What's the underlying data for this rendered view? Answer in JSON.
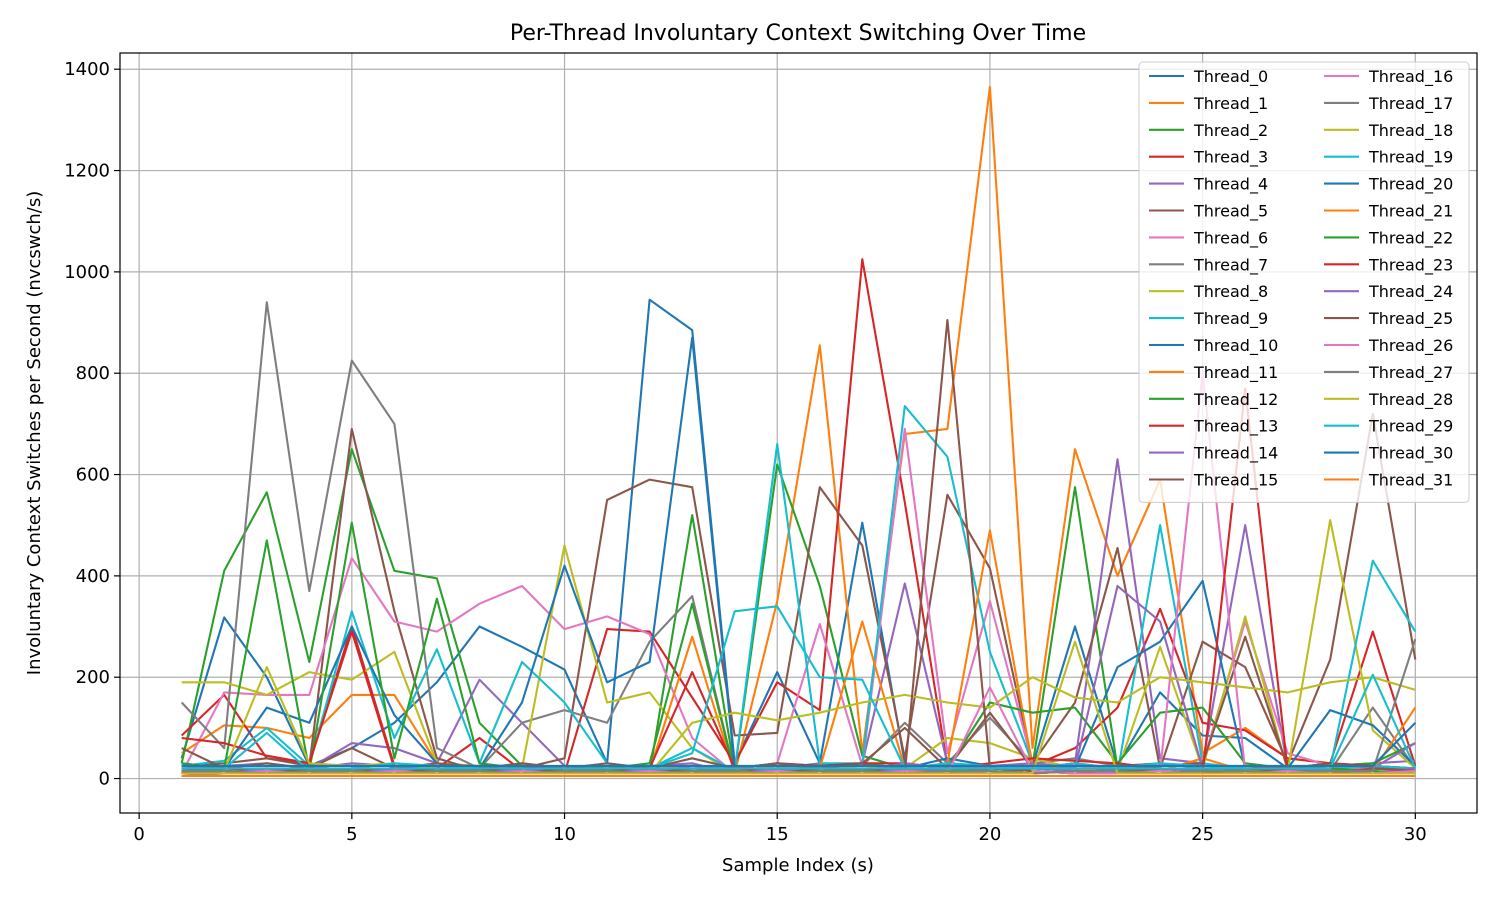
{
  "chart_data": {
    "type": "line",
    "title": "Per-Thread Involuntary Context Switching Over Time",
    "xlabel": "Sample Index (s)",
    "ylabel": "Involuntary Context Switches per Second (nvcswch/s)",
    "xlim": [
      -0.45,
      31.45
    ],
    "ylim": [
      -68,
      1432
    ],
    "x_ticks": [
      0,
      5,
      10,
      15,
      20,
      25,
      30
    ],
    "y_ticks": [
      0,
      200,
      400,
      600,
      800,
      1000,
      1200,
      1400
    ],
    "grid": true,
    "legend": {
      "placement": "top-right",
      "columns": 2
    },
    "x": [
      1,
      2,
      3,
      4,
      5,
      6,
      7,
      8,
      9,
      10,
      11,
      12,
      13,
      14,
      15,
      16,
      17,
      18,
      19,
      20,
      21,
      22,
      23,
      24,
      25,
      26,
      27,
      28,
      29,
      30
    ],
    "series": [
      {
        "name": "Thread_0",
        "color": "#1f77b4",
        "values": [
          40,
          318,
          200,
          25,
          60,
          110,
          190,
          300,
          260,
          215,
          30,
          945,
          885,
          30,
          210,
          30,
          505,
          30,
          20,
          25,
          25,
          300,
          25,
          170,
          85,
          80,
          20,
          30,
          25,
          20
        ]
      },
      {
        "name": "Thread_1",
        "color": "#ff7f0e",
        "values": [
          50,
          105,
          100,
          80,
          165,
          165,
          30,
          25,
          20,
          15,
          15,
          20,
          25,
          10,
          350,
          855,
          50,
          680,
          690,
          1365,
          60,
          650,
          400,
          590,
          50,
          100,
          40,
          30,
          20,
          15
        ]
      },
      {
        "name": "Thread_2",
        "color": "#2ca02c",
        "values": [
          30,
          410,
          565,
          230,
          650,
          410,
          395,
          110,
          25,
          20,
          15,
          10,
          520,
          15,
          620,
          380,
          45,
          20,
          15,
          20,
          25,
          575,
          20,
          15,
          10,
          15,
          10,
          15,
          10,
          10
        ]
      },
      {
        "name": "Thread_3",
        "color": "#d62728",
        "values": [
          85,
          165,
          40,
          30,
          300,
          25,
          20,
          80,
          15,
          10,
          295,
          290,
          160,
          30,
          190,
          135,
          1025,
          545,
          25,
          20,
          25,
          60,
          140,
          335,
          110,
          95,
          40,
          30,
          290,
          25
        ]
      },
      {
        "name": "Thread_4",
        "color": "#9467bd",
        "values": [
          20,
          25,
          30,
          20,
          70,
          60,
          30,
          195,
          110,
          25,
          20,
          25,
          30,
          10,
          20,
          25,
          30,
          385,
          30,
          25,
          20,
          30,
          630,
          40,
          30,
          500,
          20,
          25,
          30,
          35
        ]
      },
      {
        "name": "Thread_5",
        "color": "#8c564b",
        "values": [
          25,
          30,
          40,
          25,
          690,
          330,
          40,
          15,
          20,
          40,
          550,
          590,
          575,
          85,
          90,
          575,
          460,
          40,
          560,
          415,
          30,
          150,
          455,
          20,
          270,
          220,
          30,
          235,
          720,
          235
        ]
      },
      {
        "name": "Thread_6",
        "color": "#e377c2",
        "values": [
          10,
          170,
          165,
          165,
          435,
          310,
          290,
          345,
          380,
          295,
          320,
          285,
          80,
          10,
          30,
          305,
          25,
          690,
          50,
          350,
          30,
          25,
          20,
          25,
          30,
          310,
          50,
          25,
          20,
          15
        ]
      },
      {
        "name": "Thread_7",
        "color": "#7f7f7f",
        "values": [
          150,
          60,
          940,
          370,
          825,
          700,
          60,
          20,
          110,
          135,
          110,
          270,
          360,
          10,
          20,
          30,
          25,
          110,
          30,
          120,
          30,
          40,
          25,
          30,
          20,
          20,
          10,
          15,
          140,
          20
        ]
      },
      {
        "name": "Thread_8",
        "color": "#bcbd22",
        "values": [
          190,
          190,
          165,
          210,
          195,
          250,
          30,
          20,
          20,
          460,
          150,
          170,
          60,
          10,
          30,
          20,
          25,
          20,
          80,
          70,
          40,
          20,
          15,
          260,
          20,
          320,
          15,
          510,
          95,
          20
        ]
      },
      {
        "name": "Thread_9",
        "color": "#17becf",
        "values": [
          25,
          35,
          100,
          25,
          330,
          80,
          255,
          30,
          230,
          150,
          30,
          20,
          60,
          15,
          660,
          30,
          30,
          735,
          635,
          250,
          30,
          20,
          10,
          500,
          30,
          20,
          15,
          20,
          430,
          290
        ]
      },
      {
        "name": "Thread_10",
        "color": "#1f77b4",
        "values": [
          30,
          20,
          140,
          110,
          300,
          125,
          30,
          20,
          150,
          420,
          190,
          230,
          870,
          20,
          30,
          25,
          30,
          20,
          40,
          25,
          20,
          20,
          220,
          270,
          390,
          20,
          20,
          135,
          105,
          25
        ]
      },
      {
        "name": "Thread_11",
        "color": "#ff7f0e",
        "values": [
          20,
          15,
          10,
          10,
          15,
          20,
          10,
          15,
          10,
          20,
          10,
          15,
          280,
          10,
          30,
          20,
          310,
          20,
          30,
          490,
          25,
          20,
          10,
          15,
          40,
          15,
          10,
          20,
          15,
          140
        ]
      },
      {
        "name": "Thread_12",
        "color": "#2ca02c",
        "values": [
          30,
          20,
          470,
          15,
          505,
          40,
          355,
          30,
          20,
          25,
          20,
          30,
          345,
          10,
          20,
          25,
          30,
          20,
          20,
          150,
          130,
          140,
          30,
          130,
          140,
          30,
          20,
          25,
          30,
          70
        ]
      },
      {
        "name": "Thread_13",
        "color": "#d62728",
        "values": [
          80,
          70,
          45,
          30,
          290,
          20,
          15,
          15,
          20,
          25,
          15,
          20,
          210,
          20,
          30,
          25,
          30,
          30,
          20,
          30,
          40,
          35,
          30,
          20,
          15,
          25,
          20,
          30,
          25,
          20
        ]
      },
      {
        "name": "Thread_14",
        "color": "#9467bd",
        "values": [
          20,
          15,
          10,
          20,
          30,
          25,
          20,
          15,
          30,
          20,
          15,
          10,
          25,
          20,
          30,
          20,
          15,
          30,
          20,
          25,
          30,
          20,
          380,
          310,
          20,
          15,
          20,
          15,
          20,
          70
        ]
      },
      {
        "name": "Thread_15",
        "color": "#8c564b",
        "values": [
          60,
          20,
          30,
          20,
          60,
          20,
          30,
          20,
          30,
          20,
          30,
          20,
          40,
          20,
          30,
          20,
          30,
          100,
          20,
          130,
          20,
          30,
          20,
          25,
          30,
          280,
          20,
          30,
          20,
          20
        ]
      },
      {
        "name": "Thread_16",
        "color": "#e377c2",
        "values": [
          10,
          15,
          10,
          15,
          10,
          15,
          20,
          10,
          15,
          10,
          15,
          10,
          15,
          10,
          20,
          15,
          10,
          15,
          20,
          15,
          10,
          15,
          20,
          15,
          800,
          15,
          10,
          15,
          20,
          15
        ]
      },
      {
        "name": "Thread_17",
        "color": "#7f7f7f",
        "values": [
          5,
          10,
          15,
          10,
          20,
          15,
          10,
          20,
          15,
          10,
          15,
          20,
          10,
          15,
          20,
          10,
          15,
          20,
          15,
          10,
          20,
          15,
          10,
          20,
          15,
          10,
          15,
          20,
          10,
          15
        ]
      },
      {
        "name": "Thread_18",
        "color": "#bcbd22",
        "values": [
          20,
          15,
          220,
          30,
          25,
          30,
          20,
          15,
          10,
          20,
          15,
          10,
          110,
          130,
          115,
          130,
          150,
          165,
          150,
          140,
          200,
          160,
          150,
          200,
          190,
          180,
          170,
          190,
          200,
          175
        ]
      },
      {
        "name": "Thread_19",
        "color": "#17becf",
        "values": [
          15,
          20,
          90,
          15,
          20,
          30,
          25,
          20,
          15,
          20,
          15,
          20,
          50,
          330,
          340,
          200,
          195,
          20,
          30,
          25,
          20,
          30,
          20,
          30,
          25,
          20,
          15,
          20,
          25,
          20
        ]
      },
      {
        "name": "Thread_20",
        "color": "#1f77b4",
        "values": [
          20,
          15,
          10,
          15,
          20,
          15,
          10,
          15,
          20,
          15,
          10,
          15,
          20,
          15,
          20,
          15,
          10,
          15,
          20,
          15,
          10,
          15,
          20,
          15,
          10,
          15,
          20,
          15,
          10,
          15
        ]
      },
      {
        "name": "Thread_21",
        "color": "#ff7f0e",
        "values": [
          10,
          15,
          20,
          15,
          10,
          15,
          20,
          15,
          10,
          15,
          20,
          15,
          10,
          15,
          25,
          15,
          10,
          15,
          20,
          15,
          10,
          15,
          20,
          15,
          10,
          15,
          20,
          15,
          10,
          15
        ]
      },
      {
        "name": "Thread_22",
        "color": "#2ca02c",
        "values": [
          15,
          10,
          15,
          20,
          15,
          10,
          15,
          20,
          15,
          10,
          15,
          20,
          15,
          10,
          15,
          20,
          15,
          10,
          15,
          20,
          15,
          10,
          15,
          20,
          15,
          10,
          15,
          20,
          15,
          10
        ]
      },
      {
        "name": "Thread_23",
        "color": "#d62728",
        "values": [
          10,
          20,
          15,
          10,
          20,
          15,
          10,
          20,
          15,
          10,
          20,
          15,
          10,
          20,
          15,
          10,
          20,
          15,
          10,
          20,
          15,
          10,
          20,
          15,
          10,
          770,
          15,
          10,
          20,
          15
        ]
      },
      {
        "name": "Thread_24",
        "color": "#9467bd",
        "values": [
          15,
          10,
          20,
          15,
          10,
          20,
          15,
          10,
          20,
          15,
          10,
          20,
          15,
          10,
          20,
          15,
          10,
          20,
          15,
          10,
          20,
          15,
          10,
          20,
          15,
          10,
          20,
          15,
          10,
          20
        ]
      },
      {
        "name": "Thread_25",
        "color": "#8c564b",
        "values": [
          20,
          15,
          10,
          20,
          15,
          10,
          20,
          15,
          10,
          20,
          15,
          10,
          20,
          15,
          10,
          20,
          15,
          10,
          905,
          20,
          15,
          10,
          20,
          15,
          10,
          20,
          15,
          10,
          20,
          15
        ]
      },
      {
        "name": "Thread_26",
        "color": "#e377c2",
        "values": [
          10,
          10,
          15,
          10,
          10,
          15,
          10,
          10,
          15,
          10,
          10,
          15,
          10,
          10,
          15,
          10,
          10,
          15,
          10,
          180,
          15,
          10,
          10,
          15,
          10,
          10,
          15,
          10,
          10,
          15
        ]
      },
      {
        "name": "Thread_27",
        "color": "#7f7f7f",
        "values": [
          15,
          15,
          10,
          15,
          15,
          10,
          15,
          15,
          10,
          15,
          15,
          10,
          15,
          15,
          10,
          15,
          15,
          10,
          15,
          15,
          10,
          15,
          15,
          10,
          15,
          15,
          10,
          15,
          15,
          275
        ]
      },
      {
        "name": "Thread_28",
        "color": "#bcbd22",
        "values": [
          10,
          10,
          10,
          10,
          10,
          10,
          10,
          10,
          10,
          10,
          10,
          10,
          10,
          10,
          10,
          10,
          10,
          10,
          10,
          10,
          10,
          270,
          10,
          10,
          10,
          10,
          10,
          10,
          10,
          10
        ]
      },
      {
        "name": "Thread_29",
        "color": "#17becf",
        "values": [
          20,
          20,
          20,
          20,
          20,
          20,
          20,
          20,
          20,
          20,
          20,
          20,
          20,
          20,
          20,
          20,
          20,
          20,
          20,
          20,
          20,
          20,
          20,
          20,
          20,
          20,
          20,
          20,
          205,
          20
        ]
      },
      {
        "name": "Thread_30",
        "color": "#1f77b4",
        "values": [
          25,
          25,
          25,
          25,
          25,
          25,
          25,
          25,
          25,
          25,
          25,
          25,
          25,
          25,
          25,
          25,
          25,
          25,
          25,
          25,
          25,
          25,
          25,
          25,
          25,
          25,
          25,
          25,
          25,
          110
        ]
      },
      {
        "name": "Thread_31",
        "color": "#ff7f0e",
        "values": [
          5,
          5,
          5,
          5,
          5,
          5,
          5,
          5,
          5,
          5,
          5,
          5,
          5,
          5,
          5,
          5,
          5,
          5,
          5,
          5,
          5,
          5,
          5,
          5,
          5,
          5,
          5,
          5,
          5,
          5
        ]
      }
    ]
  }
}
